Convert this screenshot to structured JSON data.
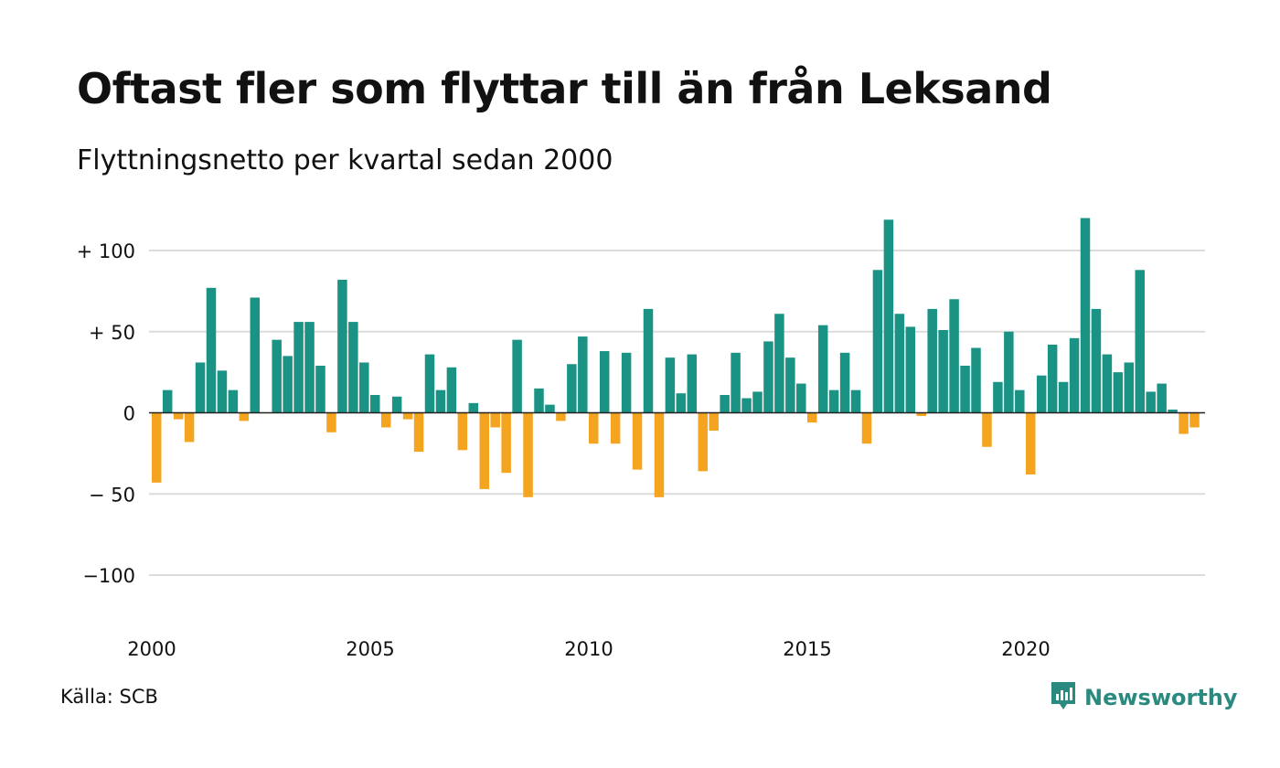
{
  "header": {
    "title": "Oftast fler som flyttar till än från Leksand",
    "subtitle": "Flyttningsnetto per kvartal sedan 2000"
  },
  "footer": {
    "source": "Källa: SCB",
    "brand": "Newsworthy",
    "brand_icon": "bar-chart-speech-bubble-icon"
  },
  "colors": {
    "positive": "#1a9385",
    "negative": "#f5a41f",
    "grid": "#dcdcdc",
    "zero": "#222222",
    "brand": "#2a8a80"
  },
  "chart_data": {
    "type": "bar",
    "title": "Oftast fler som flyttar till än från Leksand",
    "subtitle": "Flyttningsnetto per kvartal sedan 2000",
    "start_year": 2000,
    "quarters_per_year": 4,
    "ylim": [
      -125,
      125
    ],
    "yticks": [
      {
        "value": 100,
        "label": "+ 100"
      },
      {
        "value": 50,
        "label": "+  50"
      },
      {
        "value": 0,
        "label": "0"
      },
      {
        "value": -50,
        "label": "− 50"
      },
      {
        "value": -100,
        "label": "−100"
      }
    ],
    "xticks": [
      {
        "label": "2000",
        "year": 2000
      },
      {
        "label": "2005",
        "year": 2005
      },
      {
        "label": "2010",
        "year": 2010
      },
      {
        "label": "2015",
        "year": 2015
      },
      {
        "label": "2020",
        "year": 2020
      }
    ],
    "grid": true,
    "values": [
      -43,
      14,
      -4,
      -18,
      31,
      77,
      26,
      14,
      -5,
      71,
      0,
      45,
      35,
      56,
      56,
      29,
      -12,
      82,
      56,
      31,
      11,
      -9,
      10,
      -4,
      -24,
      36,
      14,
      28,
      -23,
      6,
      -47,
      -9,
      -37,
      45,
      -52,
      15,
      5,
      -5,
      30,
      47,
      -19,
      38,
      -19,
      37,
      -35,
      64,
      -52,
      34,
      12,
      36,
      -36,
      -11,
      11,
      37,
      9,
      13,
      44,
      61,
      34,
      18,
      -6,
      54,
      14,
      37,
      14,
      -19,
      88,
      119,
      61,
      53,
      -2,
      64,
      51,
      70,
      29,
      40,
      -21,
      19,
      50,
      14,
      -38,
      23,
      42,
      19,
      46,
      120,
      64,
      36,
      25,
      31,
      88,
      13,
      18,
      2,
      -13,
      -9
    ]
  }
}
